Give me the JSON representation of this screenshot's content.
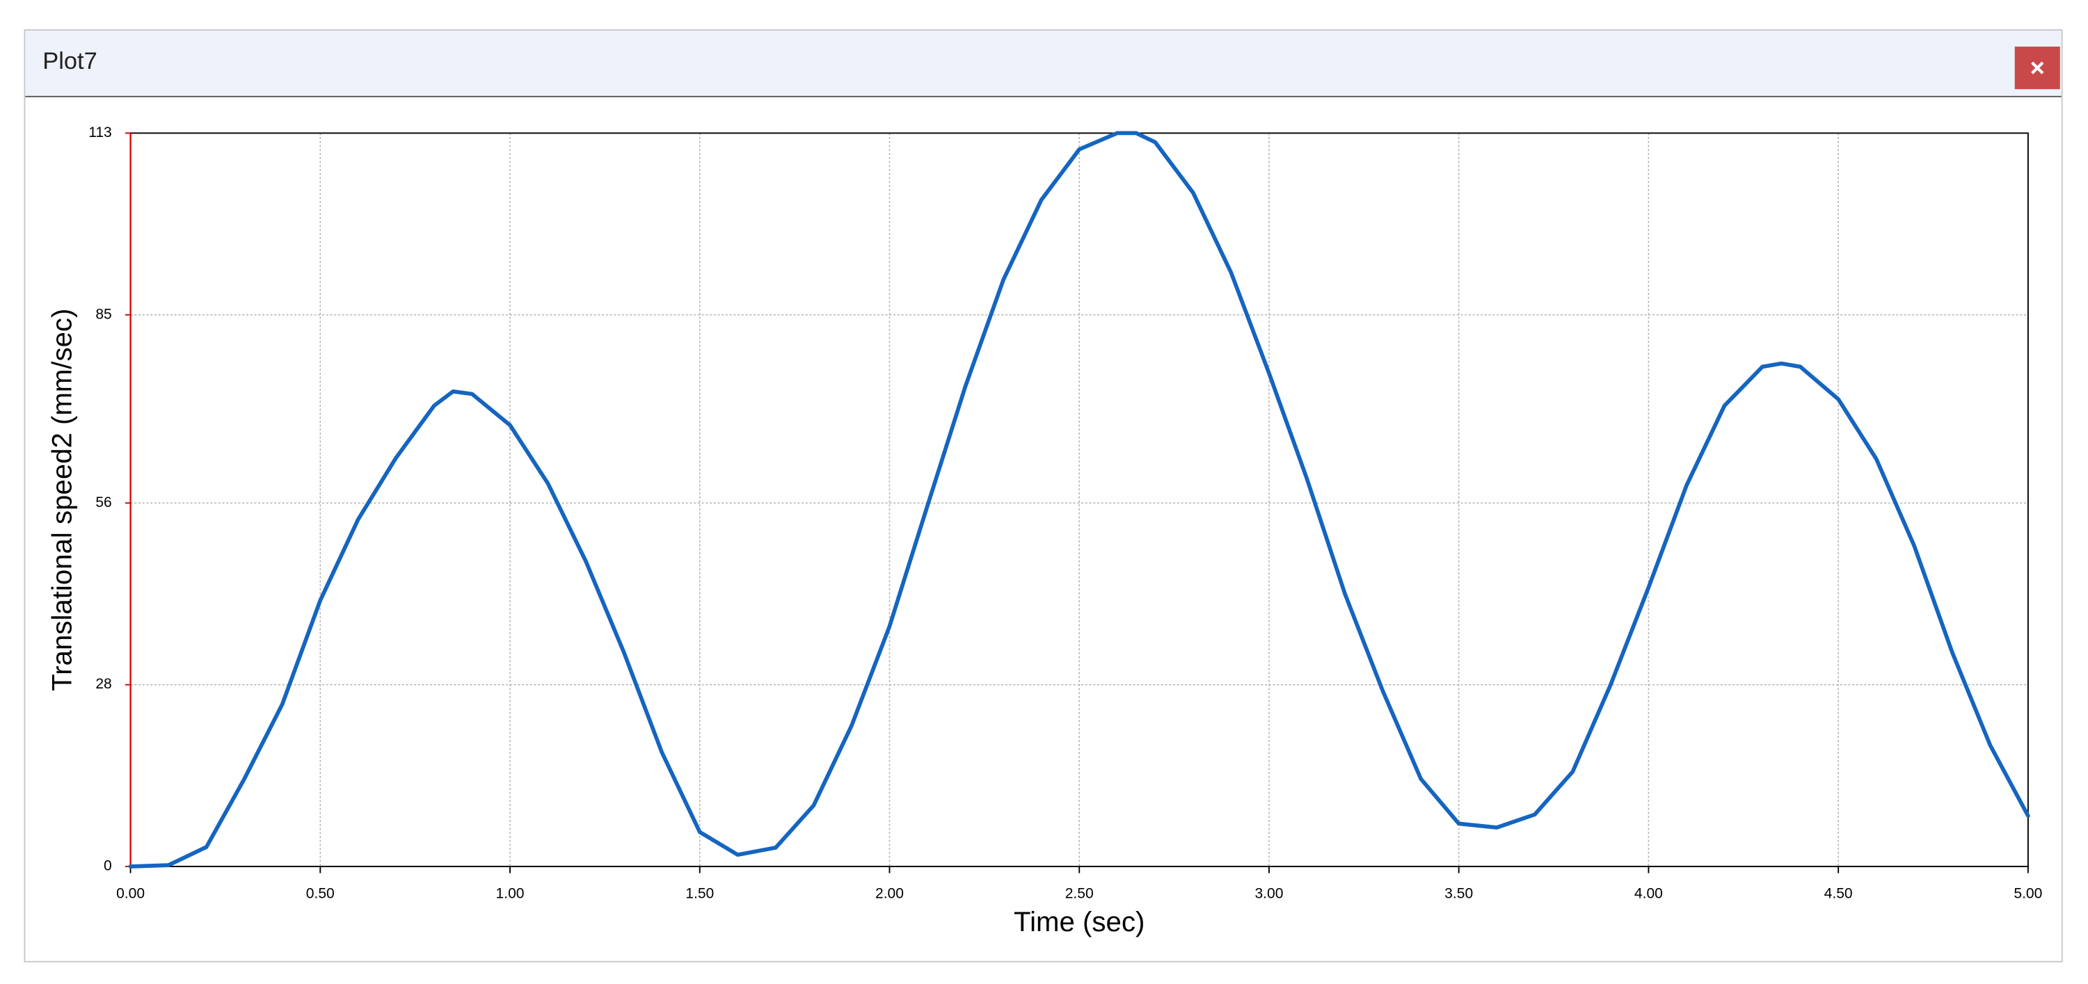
{
  "window": {
    "title": "Plot7"
  },
  "chart_data": {
    "type": "line",
    "xlabel": "Time (sec)",
    "ylabel": "Translational speed2 (mm/sec)",
    "x": [
      0,
      0.1,
      0.2,
      0.3,
      0.4,
      0.5,
      0.6,
      0.7,
      0.8,
      0.85,
      0.9,
      1.0,
      1.1,
      1.2,
      1.3,
      1.4,
      1.5,
      1.6,
      1.7,
      1.8,
      1.9,
      2.0,
      2.1,
      2.2,
      2.3,
      2.4,
      2.5,
      2.6,
      2.65,
      2.7,
      2.8,
      2.9,
      3.0,
      3.1,
      3.2,
      3.3,
      3.4,
      3.5,
      3.6,
      3.7,
      3.8,
      3.9,
      4.0,
      4.1,
      4.2,
      4.3,
      4.35,
      4.4,
      4.5,
      4.6,
      4.7,
      4.8,
      4.9,
      5.0
    ],
    "values": [
      0,
      0.2,
      3,
      13.5,
      25,
      41,
      53.5,
      63,
      71,
      73.2,
      72.8,
      68,
      59,
      47,
      33,
      17.6,
      5.3,
      1.8,
      2.9,
      9.4,
      21.7,
      37,
      55.6,
      74,
      90.4,
      102.7,
      110.5,
      113,
      113,
      111.6,
      103.8,
      91.5,
      76,
      59.7,
      42,
      27,
      13.5,
      6.6,
      6,
      8,
      14.6,
      28,
      43,
      58.7,
      71,
      77,
      77.5,
      77,
      72,
      62.8,
      49.4,
      33,
      18.7,
      7.8
    ],
    "color": "#1565c0",
    "xlim": [
      0,
      5
    ],
    "ylim": [
      0,
      113
    ],
    "xticks": [
      {
        "value": 0,
        "label": "0.00"
      },
      {
        "value": 0.5,
        "label": "0.50"
      },
      {
        "value": 1,
        "label": "1.00"
      },
      {
        "value": 1.5,
        "label": "1.50"
      },
      {
        "value": 2,
        "label": "2.00"
      },
      {
        "value": 2.5,
        "label": "2.50"
      },
      {
        "value": 3,
        "label": "3.00"
      },
      {
        "value": 3.5,
        "label": "3.50"
      },
      {
        "value": 4,
        "label": "4.00"
      },
      {
        "value": 4.5,
        "label": "4.50"
      },
      {
        "value": 5,
        "label": "5.00"
      }
    ],
    "yticks": [
      0,
      28,
      56,
      85,
      113
    ],
    "grid": true
  }
}
